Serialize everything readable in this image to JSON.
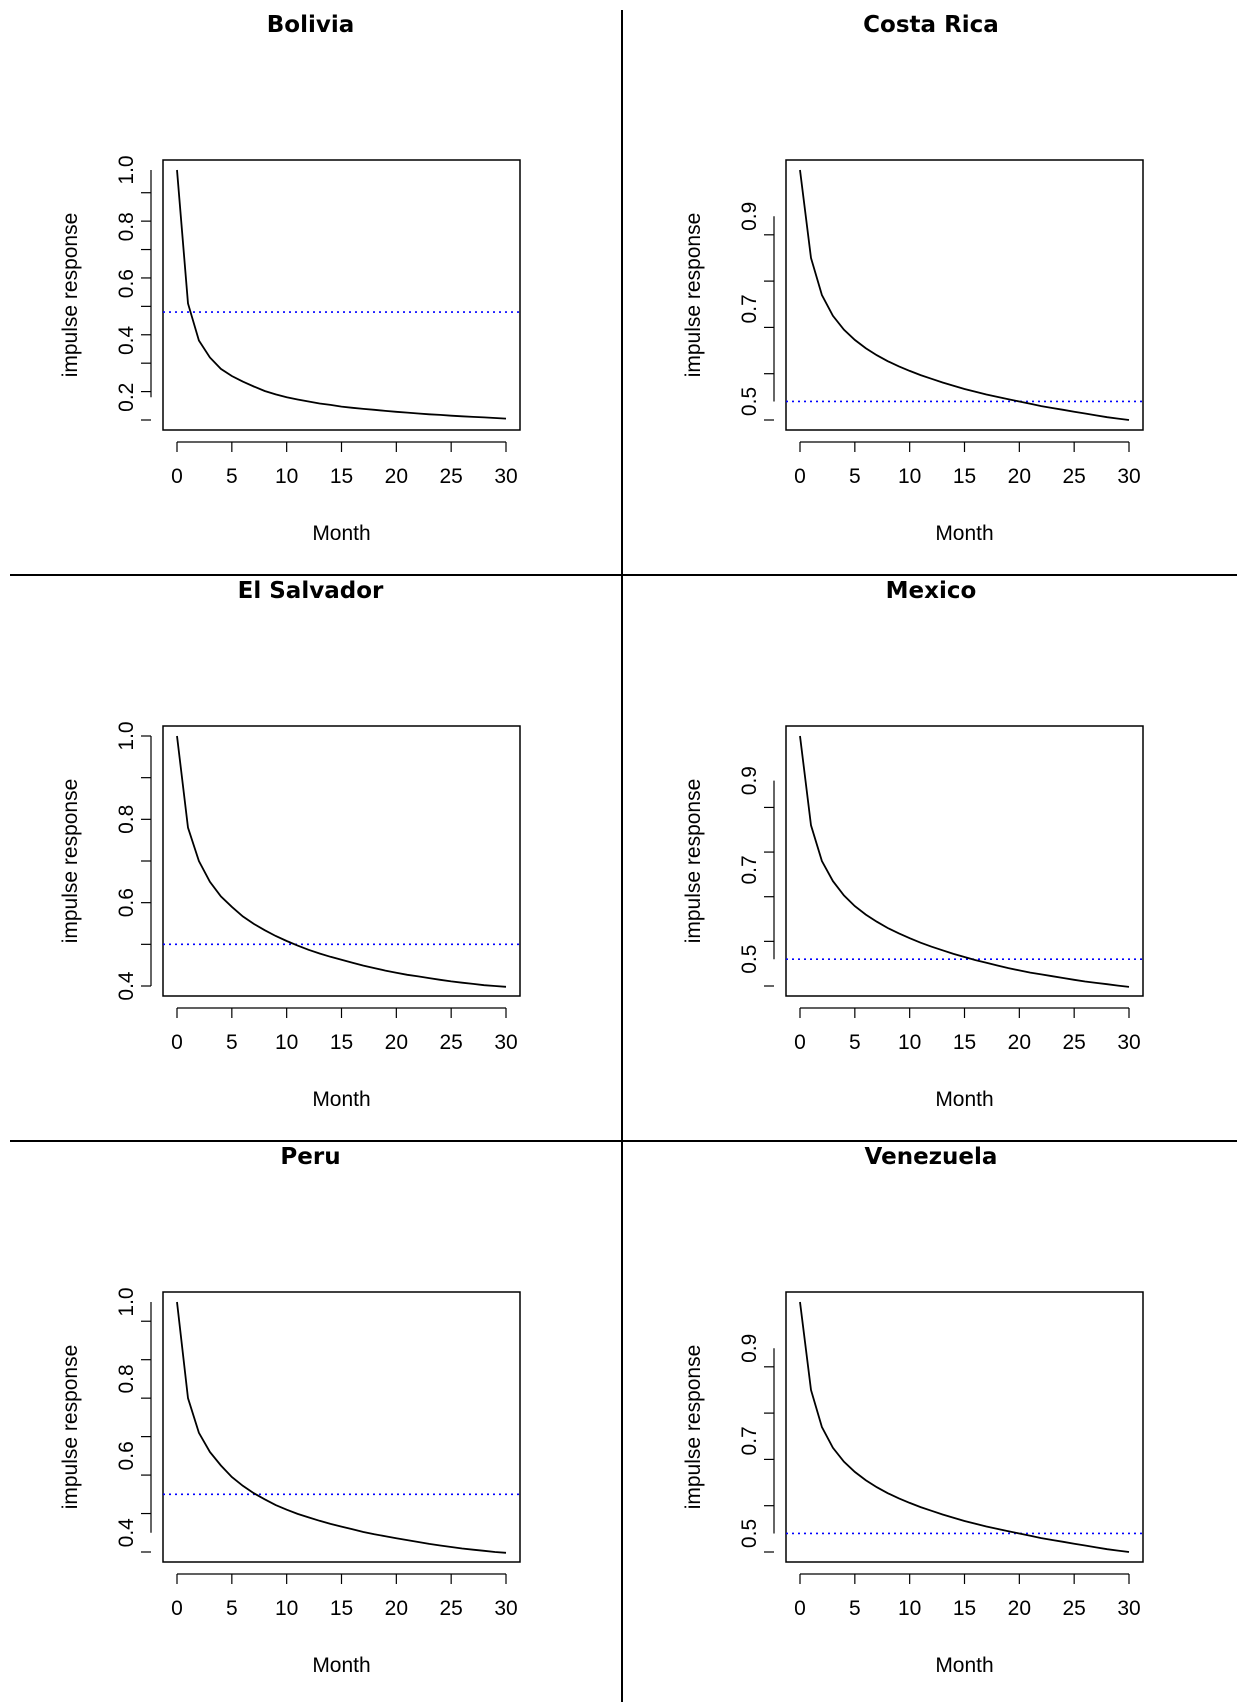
{
  "chart_data": [
    {
      "type": "line",
      "title": "Bolivia",
      "xlabel": "Month",
      "ylabel": "impulse response",
      "xlim": [
        0,
        30
      ],
      "ylim": [
        0.12,
        1.0
      ],
      "xticks": [
        "0",
        "5",
        "10",
        "15",
        "20",
        "25",
        "30"
      ],
      "yticks": [
        "0.2",
        "0.4",
        "0.6",
        "0.8",
        "1.0"
      ],
      "reference_line": {
        "y": 0.5,
        "color": "#0000ff",
        "style": "dotted"
      },
      "x": [
        0,
        1,
        2,
        3,
        4,
        5,
        6,
        7,
        8,
        9,
        10,
        11,
        12,
        13,
        14,
        15,
        16,
        17,
        18,
        19,
        20,
        21,
        22,
        23,
        24,
        25,
        26,
        27,
        28,
        29,
        30
      ],
      "values": [
        1.0,
        0.53,
        0.4,
        0.34,
        0.3,
        0.275,
        0.255,
        0.238,
        0.222,
        0.21,
        0.2,
        0.192,
        0.185,
        0.178,
        0.173,
        0.167,
        0.163,
        0.159,
        0.156,
        0.152,
        0.149,
        0.146,
        0.143,
        0.14,
        0.138,
        0.135,
        0.133,
        0.131,
        0.129,
        0.127,
        0.125
      ]
    },
    {
      "type": "line",
      "title": "Costa Rica",
      "xlabel": "Month",
      "ylabel": "impulse response",
      "xlim": [
        0,
        30
      ],
      "ylim": [
        0.46,
        1.0
      ],
      "xticks": [
        "0",
        "5",
        "10",
        "15",
        "20",
        "25",
        "30"
      ],
      "yticks": [
        "0.5",
        "0.7",
        "0.9"
      ],
      "reference_line": {
        "y": 0.5,
        "color": "#0000ff",
        "style": "dotted"
      },
      "x": [
        0,
        1,
        2,
        3,
        4,
        5,
        6,
        7,
        8,
        9,
        10,
        11,
        12,
        13,
        14,
        15,
        16,
        17,
        18,
        19,
        20,
        21,
        22,
        23,
        24,
        25,
        26,
        27,
        28,
        29,
        30
      ],
      "values": [
        1.0,
        0.81,
        0.73,
        0.685,
        0.655,
        0.633,
        0.615,
        0.6,
        0.587,
        0.576,
        0.566,
        0.557,
        0.549,
        0.541,
        0.534,
        0.527,
        0.521,
        0.515,
        0.51,
        0.505,
        0.5,
        0.495,
        0.49,
        0.486,
        0.482,
        0.478,
        0.474,
        0.47,
        0.466,
        0.463,
        0.46
      ]
    },
    {
      "type": "line",
      "title": "El Salvador",
      "xlabel": "Month",
      "ylabel": "impulse response",
      "xlim": [
        0,
        30
      ],
      "ylim": [
        0.4,
        1.0
      ],
      "xticks": [
        "0",
        "5",
        "10",
        "15",
        "20",
        "25",
        "30"
      ],
      "yticks": [
        "0.4",
        "0.6",
        "0.8",
        "1.0"
      ],
      "reference_line": {
        "y": 0.5,
        "color": "#0000ff",
        "style": "dotted"
      },
      "x": [
        0,
        1,
        2,
        3,
        4,
        5,
        6,
        7,
        8,
        9,
        10,
        11,
        12,
        13,
        14,
        15,
        16,
        17,
        18,
        19,
        20,
        21,
        22,
        23,
        24,
        25,
        26,
        27,
        28,
        29,
        30
      ],
      "values": [
        1.0,
        0.78,
        0.7,
        0.65,
        0.615,
        0.59,
        0.567,
        0.549,
        0.534,
        0.52,
        0.508,
        0.497,
        0.487,
        0.478,
        0.47,
        0.463,
        0.456,
        0.449,
        0.443,
        0.437,
        0.432,
        0.427,
        0.423,
        0.419,
        0.415,
        0.411,
        0.408,
        0.405,
        0.402,
        0.4,
        0.398
      ]
    },
    {
      "type": "line",
      "title": "Mexico",
      "xlabel": "Month",
      "ylabel": "impulse response",
      "xlim": [
        0,
        30
      ],
      "ylim": [
        0.44,
        1.0
      ],
      "xticks": [
        "0",
        "5",
        "10",
        "15",
        "20",
        "25",
        "30"
      ],
      "yticks": [
        "0.5",
        "0.7",
        "0.9"
      ],
      "reference_line": {
        "y": 0.5,
        "color": "#0000ff",
        "style": "dotted"
      },
      "x": [
        0,
        1,
        2,
        3,
        4,
        5,
        6,
        7,
        8,
        9,
        10,
        11,
        12,
        13,
        14,
        15,
        16,
        17,
        18,
        19,
        20,
        21,
        22,
        23,
        24,
        25,
        26,
        27,
        28,
        29,
        30
      ],
      "values": [
        1.0,
        0.8,
        0.72,
        0.675,
        0.643,
        0.619,
        0.6,
        0.584,
        0.57,
        0.558,
        0.547,
        0.537,
        0.528,
        0.52,
        0.512,
        0.505,
        0.498,
        0.492,
        0.486,
        0.48,
        0.475,
        0.47,
        0.466,
        0.462,
        0.458,
        0.454,
        0.45,
        0.447,
        0.444,
        0.441,
        0.438
      ]
    },
    {
      "type": "line",
      "title": "Peru",
      "xlabel": "Month",
      "ylabel": "impulse response",
      "xlim": [
        0,
        30
      ],
      "ylim": [
        0.35,
        1.0
      ],
      "xticks": [
        "0",
        "5",
        "10",
        "15",
        "20",
        "25",
        "30"
      ],
      "yticks": [
        "0.4",
        "0.6",
        "0.8",
        "1.0"
      ],
      "reference_line": {
        "y": 0.5,
        "color": "#0000ff",
        "style": "dotted"
      },
      "x": [
        0,
        1,
        2,
        3,
        4,
        5,
        6,
        7,
        8,
        9,
        10,
        11,
        12,
        13,
        14,
        15,
        16,
        17,
        18,
        19,
        20,
        21,
        22,
        23,
        24,
        25,
        26,
        27,
        28,
        29,
        30
      ],
      "values": [
        1.0,
        0.75,
        0.66,
        0.61,
        0.575,
        0.545,
        0.522,
        0.503,
        0.487,
        0.472,
        0.46,
        0.449,
        0.44,
        0.431,
        0.423,
        0.416,
        0.409,
        0.402,
        0.396,
        0.391,
        0.386,
        0.381,
        0.376,
        0.371,
        0.367,
        0.363,
        0.359,
        0.356,
        0.353,
        0.35,
        0.348
      ]
    },
    {
      "type": "line",
      "title": "Venezuela",
      "xlabel": "Month",
      "ylabel": "impulse response",
      "xlim": [
        0,
        30
      ],
      "ylim": [
        0.46,
        1.0
      ],
      "xticks": [
        "0",
        "5",
        "10",
        "15",
        "20",
        "25",
        "30"
      ],
      "yticks": [
        "0.5",
        "0.7",
        "0.9"
      ],
      "reference_line": {
        "y": 0.5,
        "color": "#0000ff",
        "style": "dotted"
      },
      "x": [
        0,
        1,
        2,
        3,
        4,
        5,
        6,
        7,
        8,
        9,
        10,
        11,
        12,
        13,
        14,
        15,
        16,
        17,
        18,
        19,
        20,
        21,
        22,
        23,
        24,
        25,
        26,
        27,
        28,
        29,
        30
      ],
      "values": [
        1.0,
        0.81,
        0.73,
        0.685,
        0.655,
        0.633,
        0.615,
        0.6,
        0.587,
        0.576,
        0.566,
        0.557,
        0.549,
        0.541,
        0.534,
        0.527,
        0.521,
        0.515,
        0.51,
        0.505,
        0.5,
        0.495,
        0.49,
        0.486,
        0.482,
        0.478,
        0.474,
        0.47,
        0.466,
        0.463,
        0.46
      ]
    }
  ],
  "colors": {
    "curve": "#000000",
    "reference_line": "#0000ff",
    "divider": "#000000"
  }
}
